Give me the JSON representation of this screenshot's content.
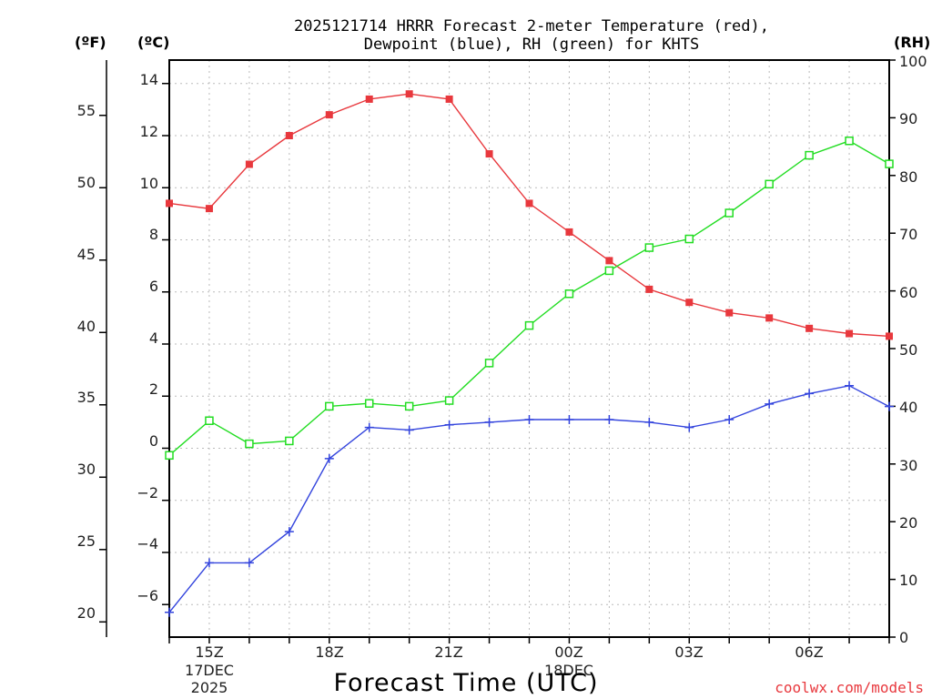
{
  "chart_data": {
    "type": "line",
    "title_line1": "2025121714 HRRR Forecast 2-meter Temperature (red),",
    "title_line2": "Dewpoint (blue), RH (green) for KHTS",
    "unit_left_f": "(ºF)",
    "unit_left_c": "(ºC)",
    "unit_right": "(RH)",
    "xlabel": "Forecast Time (UTC)",
    "credit": "coolwx.com/models",
    "hours": [
      14,
      15,
      16,
      17,
      18,
      19,
      20,
      21,
      22,
      23,
      24,
      25,
      26,
      27,
      28,
      29,
      30,
      31,
      32
    ],
    "x_ticks": [
      {
        "hour": 15,
        "label": "15Z",
        "sub1": "17DEC",
        "sub2": "2025"
      },
      {
        "hour": 18,
        "label": "18Z",
        "sub1": "",
        "sub2": ""
      },
      {
        "hour": 21,
        "label": "21Z",
        "sub1": "",
        "sub2": ""
      },
      {
        "hour": 24,
        "label": "00Z",
        "sub1": "18DEC",
        "sub2": ""
      },
      {
        "hour": 27,
        "label": "03Z",
        "sub1": "",
        "sub2": ""
      },
      {
        "hour": 30,
        "label": "06Z",
        "sub1": "",
        "sub2": ""
      }
    ],
    "ylim_c": [
      -7.25,
      14.9
    ],
    "ylim_rh": [
      0,
      100
    ],
    "y_ticks_c": [
      "14",
      "12",
      "10",
      "8",
      "6",
      "4",
      "2",
      "0",
      "−2",
      "−4",
      "−6"
    ],
    "y_ticks_f": [
      "55",
      "50",
      "45",
      "40",
      "35",
      "30",
      "25",
      "20"
    ],
    "y_ticks_rh": [
      "100",
      "90",
      "80",
      "70",
      "60",
      "50",
      "40",
      "30",
      "20",
      "10",
      "0"
    ],
    "series": [
      {
        "name": "Temperature (°C)",
        "color": "#e8383d",
        "marker": "filled-square",
        "axis": "c",
        "values": [
          9.4,
          9.2,
          10.9,
          12.0,
          12.8,
          13.4,
          13.6,
          13.4,
          11.3,
          9.4,
          8.3,
          7.2,
          6.1,
          5.6,
          5.2,
          5.0,
          4.6,
          4.4,
          4.3
        ]
      },
      {
        "name": "Dewpoint (°C)",
        "color": "#3344dd",
        "marker": "plus",
        "axis": "c",
        "values": [
          -6.3,
          -4.4,
          -4.4,
          -3.2,
          -0.4,
          0.8,
          0.7,
          0.9,
          1.0,
          1.1,
          1.1,
          1.1,
          1.0,
          0.8,
          1.1,
          1.7,
          2.1,
          2.4,
          1.6
        ]
      },
      {
        "name": "RH (%)",
        "color": "#22dd22",
        "marker": "open-square",
        "axis": "rh",
        "values": [
          31.5,
          37.5,
          33.5,
          34.0,
          40.0,
          40.5,
          40.0,
          41.0,
          47.5,
          54.0,
          59.5,
          63.5,
          67.5,
          69.0,
          73.5,
          78.5,
          83.5,
          86.0,
          82.0
        ]
      }
    ]
  }
}
